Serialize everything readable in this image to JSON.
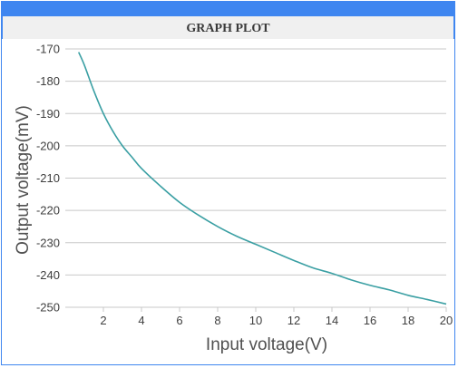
{
  "header": {
    "title": "GRAPH PLOT"
  },
  "colors": {
    "frame": "#3f86f0",
    "header_band": "#f0f0f0",
    "line": "#3a9fa3",
    "grid": "#c8c8c8"
  },
  "chart_data": {
    "type": "line",
    "title": "GRAPH PLOT",
    "xlabel": "Input voltage(V)",
    "ylabel": "Output voltage(mV)",
    "xlim": [
      0,
      20
    ],
    "ylim": [
      -250,
      -170
    ],
    "x_ticks": [
      2,
      4,
      6,
      8,
      10,
      12,
      14,
      16,
      18,
      20
    ],
    "y_ticks": [
      -170,
      -180,
      -190,
      -200,
      -210,
      -220,
      -230,
      -240,
      -250
    ],
    "grid": true,
    "legend": "none",
    "series": [
      {
        "x": [
          0.7,
          1.0,
          1.5,
          2.0,
          2.5,
          3.0,
          3.5,
          4.0,
          5.0,
          6.0,
          7.0,
          8.0,
          9.0,
          10.0,
          11.0,
          12.0,
          13.0,
          14.0,
          15.0,
          16.0,
          17.0,
          18.0,
          19.0,
          20.0
        ],
        "y": [
          -171,
          -175,
          -183,
          -190,
          -195.5,
          -200,
          -203.5,
          -207,
          -212.5,
          -217.5,
          -221.5,
          -225,
          -228,
          -230.5,
          -233,
          -235.5,
          -237.8,
          -239.5,
          -241.5,
          -243.2,
          -244.6,
          -246.3,
          -247.6,
          -249
        ]
      }
    ]
  }
}
